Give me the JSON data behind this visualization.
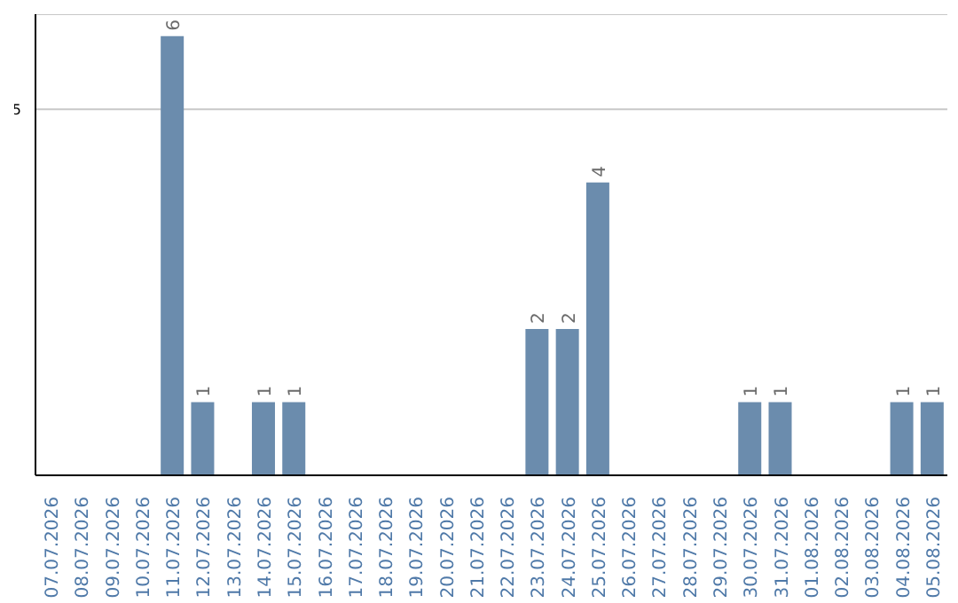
{
  "chart_data": {
    "type": "bar",
    "categories": [
      "07.07.2026",
      "08.07.2026",
      "09.07.2026",
      "10.07.2026",
      "11.07.2026",
      "12.07.2026",
      "13.07.2026",
      "14.07.2026",
      "15.07.2026",
      "16.07.2026",
      "17.07.2026",
      "18.07.2026",
      "19.07.2026",
      "20.07.2026",
      "21.07.2026",
      "22.07.2026",
      "23.07.2026",
      "24.07.2026",
      "25.07.2026",
      "26.07.2026",
      "27.07.2026",
      "28.07.2026",
      "29.07.2026",
      "30.07.2026",
      "31.07.2026",
      "01.08.2026",
      "02.08.2026",
      "03.08.2026",
      "04.08.2026",
      "05.08.2026"
    ],
    "values": [
      0,
      0,
      0,
      0,
      6,
      1,
      0,
      1,
      1,
      0,
      0,
      0,
      0,
      0,
      0,
      0,
      2,
      2,
      4,
      0,
      0,
      0,
      0,
      1,
      1,
      0,
      0,
      0,
      1,
      1
    ],
    "value_labels": [
      null,
      null,
      null,
      null,
      "6",
      "1",
      null,
      "1",
      "1",
      null,
      null,
      null,
      null,
      null,
      null,
      null,
      "2",
      "2",
      "4",
      null,
      null,
      null,
      null,
      "1",
      "1",
      null,
      null,
      null,
      "1",
      "1"
    ],
    "color": "#6b8cad",
    "ylim": [
      0,
      6.3
    ],
    "yticks": [
      5
    ],
    "grid": "y"
  }
}
